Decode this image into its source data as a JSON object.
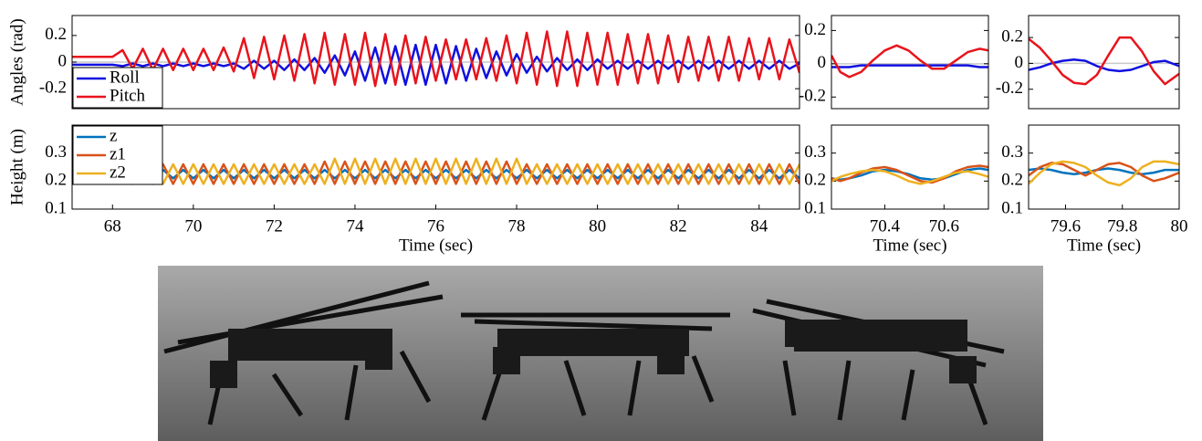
{
  "chart_data": [
    {
      "type": "line",
      "ylabel": "Angles (rad)",
      "x": [
        67,
        67.25,
        67.5,
        67.75,
        68,
        68.25,
        68.5,
        68.75,
        69,
        69.25,
        69.5,
        69.75,
        70,
        70.25,
        70.5,
        70.75,
        71,
        71.25,
        71.5,
        71.75,
        72,
        72.25,
        72.5,
        72.75,
        73,
        73.25,
        73.5,
        73.75,
        74,
        74.25,
        74.5,
        74.75,
        75,
        75.25,
        75.5,
        75.75,
        76,
        76.25,
        76.5,
        76.75,
        77,
        77.25,
        77.5,
        77.75,
        78,
        78.25,
        78.5,
        78.75,
        79,
        79.25,
        79.5,
        79.75,
        80,
        80.25,
        80.5,
        80.75,
        81,
        81.25,
        81.5,
        81.75,
        82,
        82.25,
        82.5,
        82.75,
        83,
        83.25,
        83.5,
        83.75,
        84,
        84.25,
        84.5,
        84.75,
        85
      ],
      "series": [
        {
          "name": "Roll",
          "color": "#1010e0",
          "values": [
            -0.02,
            -0.02,
            -0.02,
            -0.02,
            -0.02,
            -0.03,
            -0.01,
            -0.03,
            -0.01,
            -0.03,
            -0.01,
            -0.03,
            -0.01,
            -0.03,
            -0.01,
            -0.03,
            -0.01,
            -0.05,
            0.01,
            -0.05,
            0.01,
            -0.06,
            0.02,
            -0.06,
            0.03,
            -0.08,
            0.05,
            -0.1,
            0.08,
            -0.14,
            0.11,
            -0.16,
            0.12,
            -0.17,
            0.13,
            -0.17,
            0.13,
            -0.16,
            0.12,
            -0.14,
            0.1,
            -0.12,
            0.08,
            -0.1,
            0.06,
            -0.08,
            0.04,
            -0.07,
            0.03,
            -0.06,
            0.02,
            -0.06,
            0.02,
            -0.05,
            0.01,
            -0.05,
            0.01,
            -0.05,
            0.01,
            -0.05,
            0.01,
            -0.05,
            0.01,
            -0.05,
            0.01,
            -0.05,
            0.01,
            -0.05,
            0.01,
            -0.05,
            0.01,
            -0.05,
            -0.01
          ]
        },
        {
          "name": "Pitch",
          "color": "#e8141c",
          "values": [
            0.04,
            0.04,
            0.04,
            0.04,
            0.04,
            0.09,
            -0.05,
            0.1,
            -0.06,
            0.1,
            -0.06,
            0.1,
            -0.06,
            0.1,
            -0.06,
            0.11,
            -0.07,
            0.18,
            -0.12,
            0.19,
            -0.13,
            0.2,
            -0.14,
            0.21,
            -0.16,
            0.22,
            -0.17,
            0.21,
            -0.17,
            0.22,
            -0.18,
            0.21,
            -0.17,
            0.2,
            -0.16,
            0.19,
            -0.14,
            0.17,
            -0.13,
            0.17,
            -0.13,
            0.18,
            -0.14,
            0.2,
            -0.16,
            0.22,
            -0.17,
            0.23,
            -0.18,
            0.23,
            -0.18,
            0.22,
            -0.17,
            0.22,
            -0.17,
            0.21,
            -0.16,
            0.21,
            -0.16,
            0.2,
            -0.15,
            0.19,
            -0.14,
            0.19,
            -0.14,
            0.19,
            -0.14,
            0.18,
            -0.13,
            0.18,
            -0.13,
            0.17,
            -0.08
          ]
        }
      ],
      "xlim": [
        67,
        85
      ],
      "ylim": [
        -0.35,
        0.35
      ],
      "yticks": [
        -0.2,
        0,
        0.2
      ],
      "zero_line": true,
      "legend": "lower left"
    },
    {
      "type": "line",
      "ylabel": "Height (m)",
      "xlabel": "Time (sec)",
      "x": [
        67,
        67.25,
        67.5,
        67.75,
        68,
        68.25,
        68.5,
        68.75,
        69,
        69.25,
        69.5,
        69.75,
        70,
        70.25,
        70.5,
        70.75,
        71,
        71.25,
        71.5,
        71.75,
        72,
        72.25,
        72.5,
        72.75,
        73,
        73.25,
        73.5,
        73.75,
        74,
        74.25,
        74.5,
        74.75,
        75,
        75.25,
        75.5,
        75.75,
        76,
        76.25,
        76.5,
        76.75,
        77,
        77.25,
        77.5,
        77.75,
        78,
        78.25,
        78.5,
        78.75,
        79,
        79.25,
        79.5,
        79.75,
        80,
        80.25,
        80.5,
        80.75,
        81,
        81.25,
        81.5,
        81.75,
        82,
        82.25,
        82.5,
        82.75,
        83,
        83.25,
        83.5,
        83.75,
        84,
        84.25,
        84.5,
        84.75,
        85
      ],
      "series": [
        {
          "name": "z",
          "color": "#0072bd",
          "values": [
            0.22,
            0.22,
            0.22,
            0.22,
            0.22,
            0.24,
            0.21,
            0.24,
            0.21,
            0.24,
            0.21,
            0.24,
            0.21,
            0.24,
            0.21,
            0.24,
            0.21,
            0.24,
            0.21,
            0.24,
            0.21,
            0.24,
            0.21,
            0.24,
            0.21,
            0.24,
            0.21,
            0.24,
            0.21,
            0.24,
            0.21,
            0.24,
            0.21,
            0.24,
            0.21,
            0.24,
            0.21,
            0.24,
            0.21,
            0.24,
            0.21,
            0.24,
            0.21,
            0.24,
            0.21,
            0.24,
            0.21,
            0.24,
            0.21,
            0.24,
            0.21,
            0.24,
            0.21,
            0.24,
            0.21,
            0.24,
            0.21,
            0.24,
            0.21,
            0.24,
            0.21,
            0.24,
            0.21,
            0.24,
            0.21,
            0.24,
            0.21,
            0.24,
            0.21,
            0.24,
            0.21,
            0.24,
            0.21
          ]
        },
        {
          "name": "z1",
          "color": "#d95319",
          "values": [
            0.215,
            0.215,
            0.215,
            0.215,
            0.215,
            0.26,
            0.19,
            0.26,
            0.19,
            0.26,
            0.19,
            0.26,
            0.19,
            0.26,
            0.19,
            0.26,
            0.19,
            0.26,
            0.19,
            0.26,
            0.19,
            0.26,
            0.19,
            0.26,
            0.19,
            0.27,
            0.19,
            0.27,
            0.19,
            0.27,
            0.19,
            0.27,
            0.19,
            0.27,
            0.19,
            0.27,
            0.19,
            0.27,
            0.19,
            0.27,
            0.19,
            0.27,
            0.19,
            0.27,
            0.19,
            0.26,
            0.19,
            0.26,
            0.19,
            0.26,
            0.19,
            0.26,
            0.19,
            0.26,
            0.19,
            0.26,
            0.19,
            0.26,
            0.19,
            0.26,
            0.19,
            0.26,
            0.19,
            0.26,
            0.19,
            0.26,
            0.19,
            0.26,
            0.19,
            0.26,
            0.19,
            0.26,
            0.19
          ]
        },
        {
          "name": "z2",
          "color": "#edb120",
          "values": [
            0.23,
            0.23,
            0.23,
            0.23,
            0.23,
            0.19,
            0.26,
            0.19,
            0.26,
            0.19,
            0.26,
            0.19,
            0.26,
            0.19,
            0.26,
            0.19,
            0.26,
            0.19,
            0.26,
            0.19,
            0.26,
            0.19,
            0.26,
            0.19,
            0.26,
            0.19,
            0.28,
            0.19,
            0.28,
            0.19,
            0.28,
            0.19,
            0.28,
            0.19,
            0.28,
            0.19,
            0.28,
            0.19,
            0.28,
            0.19,
            0.28,
            0.19,
            0.28,
            0.19,
            0.28,
            0.19,
            0.26,
            0.19,
            0.26,
            0.19,
            0.26,
            0.19,
            0.26,
            0.19,
            0.26,
            0.19,
            0.26,
            0.19,
            0.26,
            0.19,
            0.26,
            0.19,
            0.26,
            0.19,
            0.26,
            0.19,
            0.26,
            0.19,
            0.26,
            0.19,
            0.26,
            0.19,
            0.26
          ]
        }
      ],
      "xlim": [
        67,
        85
      ],
      "xticks": [
        68,
        70,
        72,
        74,
        76,
        78,
        80,
        82,
        84
      ],
      "ylim": [
        0.1,
        0.4
      ],
      "yticks": [
        0.1,
        0.2,
        0.3
      ],
      "legend": "upper left"
    },
    {
      "type": "line",
      "x": [
        70.22,
        70.25,
        70.28,
        70.32,
        70.36,
        70.4,
        70.44,
        70.48,
        70.52,
        70.56,
        70.6,
        70.64,
        70.68,
        70.72,
        70.75
      ],
      "series": [
        {
          "name": "Roll",
          "color": "#1010e0",
          "values": [
            -0.02,
            -0.02,
            -0.02,
            -0.01,
            -0.01,
            -0.01,
            -0.01,
            -0.01,
            -0.01,
            -0.01,
            -0.01,
            -0.01,
            -0.01,
            -0.02,
            -0.02
          ]
        },
        {
          "name": "Pitch",
          "color": "#e8141c",
          "values": [
            0.05,
            -0.05,
            -0.08,
            -0.05,
            0.02,
            0.08,
            0.11,
            0.08,
            0.02,
            -0.03,
            -0.03,
            0.02,
            0.07,
            0.09,
            0.08
          ]
        }
      ],
      "xlim": [
        70.22,
        70.75
      ],
      "ylim": [
        -0.27,
        0.29
      ],
      "yticks": [
        -0.2,
        0,
        0.2
      ],
      "zero_line": true
    },
    {
      "type": "line",
      "xlabel": "Time (sec)",
      "x": [
        70.22,
        70.25,
        70.28,
        70.32,
        70.36,
        70.4,
        70.44,
        70.48,
        70.52,
        70.56,
        70.6,
        70.64,
        70.68,
        70.72,
        70.75
      ],
      "series": [
        {
          "name": "z",
          "color": "#0072bd",
          "values": [
            0.21,
            0.205,
            0.21,
            0.22,
            0.235,
            0.24,
            0.235,
            0.225,
            0.21,
            0.205,
            0.21,
            0.225,
            0.24,
            0.245,
            0.24
          ]
        },
        {
          "name": "z1",
          "color": "#d95319",
          "values": [
            0.21,
            0.2,
            0.21,
            0.23,
            0.245,
            0.25,
            0.24,
            0.22,
            0.2,
            0.195,
            0.21,
            0.235,
            0.25,
            0.255,
            0.25
          ]
        },
        {
          "name": "z2",
          "color": "#edb120",
          "values": [
            0.2,
            0.215,
            0.225,
            0.235,
            0.24,
            0.235,
            0.22,
            0.2,
            0.19,
            0.2,
            0.215,
            0.23,
            0.235,
            0.225,
            0.215
          ]
        }
      ],
      "xlim": [
        70.22,
        70.75
      ],
      "xticks": [
        70.4,
        70.6
      ],
      "ylim": [
        0.1,
        0.4
      ],
      "yticks": [
        0.1,
        0.2,
        0.3
      ]
    },
    {
      "type": "line",
      "x": [
        79.47,
        79.51,
        79.55,
        79.59,
        79.63,
        79.67,
        79.71,
        79.75,
        79.79,
        79.83,
        79.87,
        79.91,
        79.95,
        80
      ],
      "series": [
        {
          "name": "Roll",
          "color": "#1010e0",
          "values": [
            -0.05,
            -0.03,
            0,
            0.02,
            0.03,
            0.02,
            -0.02,
            -0.05,
            -0.06,
            -0.05,
            -0.02,
            0.01,
            0.02,
            -0.02
          ]
        },
        {
          "name": "Pitch",
          "color": "#e8141c",
          "values": [
            0.19,
            0.12,
            0.02,
            -0.09,
            -0.15,
            -0.16,
            -0.09,
            0.06,
            0.2,
            0.2,
            0.09,
            -0.06,
            -0.16,
            -0.08
          ]
        }
      ],
      "xlim": [
        79.47,
        80
      ],
      "ylim": [
        -0.35,
        0.37
      ],
      "yticks": [
        -0.2,
        0,
        0.2
      ],
      "zero_line": true
    },
    {
      "type": "line",
      "xlabel": "Time (sec)",
      "x": [
        79.47,
        79.51,
        79.55,
        79.59,
        79.63,
        79.67,
        79.71,
        79.75,
        79.79,
        79.83,
        79.87,
        79.91,
        79.95,
        80
      ],
      "series": [
        {
          "name": "z",
          "color": "#0072bd",
          "values": [
            0.24,
            0.245,
            0.24,
            0.23,
            0.225,
            0.23,
            0.24,
            0.245,
            0.24,
            0.23,
            0.225,
            0.23,
            0.24,
            0.24
          ]
        },
        {
          "name": "z1",
          "color": "#d95319",
          "values": [
            0.22,
            0.25,
            0.265,
            0.26,
            0.24,
            0.22,
            0.24,
            0.26,
            0.265,
            0.25,
            0.22,
            0.2,
            0.21,
            0.23
          ]
        },
        {
          "name": "z2",
          "color": "#edb120",
          "values": [
            0.19,
            0.23,
            0.26,
            0.27,
            0.265,
            0.25,
            0.22,
            0.195,
            0.185,
            0.21,
            0.25,
            0.27,
            0.27,
            0.26
          ]
        }
      ],
      "xlim": [
        79.47,
        80
      ],
      "xticks": [
        79.6,
        79.8,
        80
      ],
      "ylim": [
        0.1,
        0.4
      ],
      "yticks": [
        0.1,
        0.2,
        0.3
      ]
    }
  ]
}
